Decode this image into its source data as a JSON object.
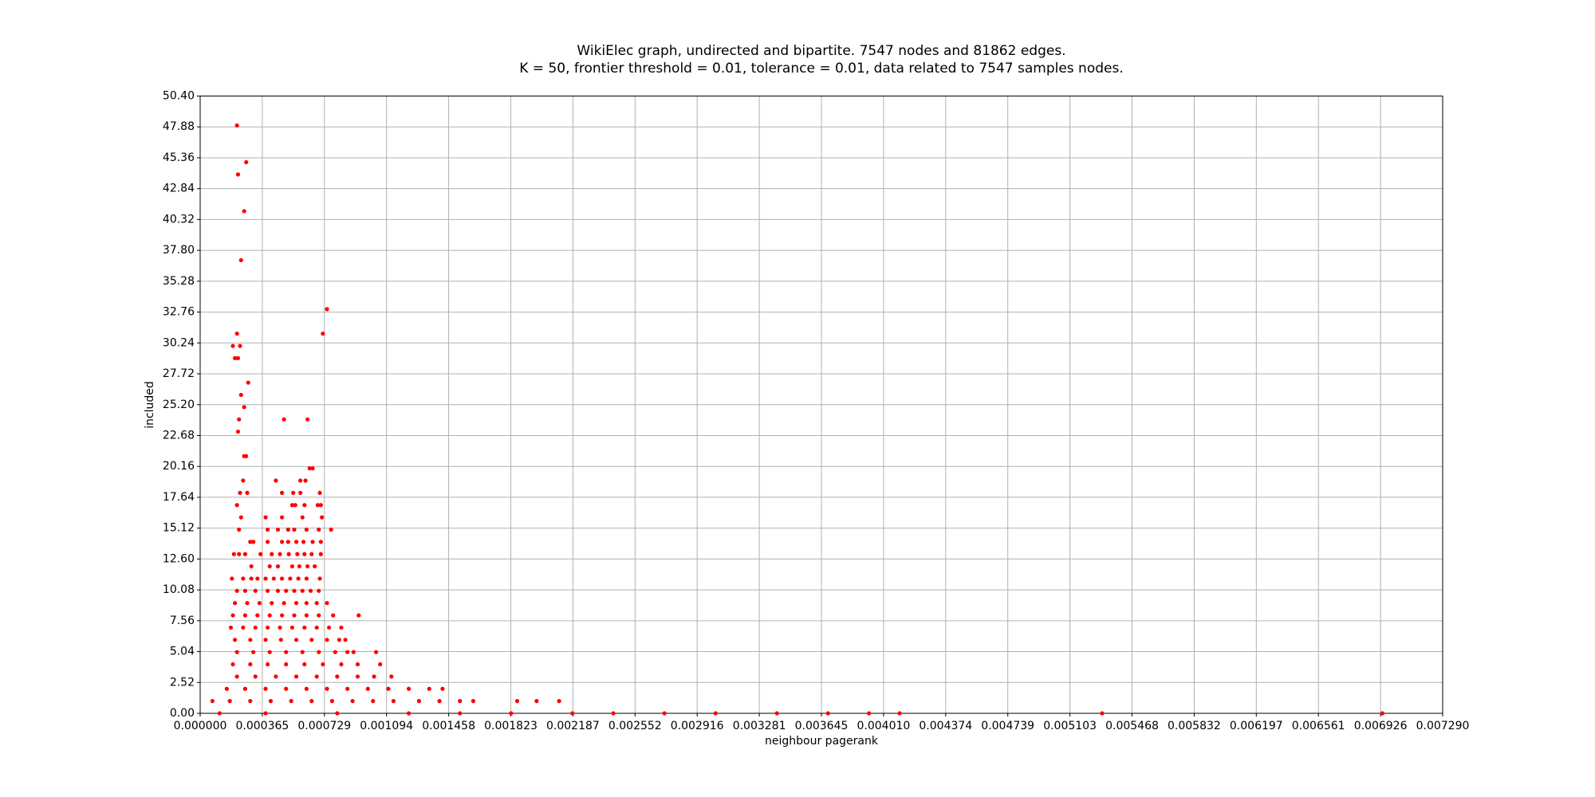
{
  "chart_data": {
    "type": "scatter",
    "title": "WikiElec graph, undirected and bipartite. 7547 nodes and 81862 edges.",
    "subtitle": "K = 50, frontier threshold = 0.01, tolerance = 0.01, data related to 7547 samples nodes.",
    "x_label": "neighbour pagerank",
    "y_label": "included",
    "color": "#ff0000",
    "grid": true,
    "x": [
      0.000216,
      0.00027,
      0.000222,
      0.000258,
      0.00024,
      0.000744,
      0.000216,
      0.00072,
      0.000192,
      0.000234,
      0.000204,
      0.000222,
      0.000282,
      0.00024,
      0.000258,
      0.000228,
      0.000492,
      0.00063,
      0.000222,
      0.000258,
      0.00027,
      0.000642,
      0.00066,
      0.000252,
      0.000444,
      0.000588,
      0.000618,
      0.000234,
      0.000276,
      0.00048,
      0.000546,
      0.000588,
      0.000702,
      0.000216,
      0.00054,
      0.000558,
      0.000612,
      0.00069,
      0.000708,
      0.00024,
      0.000384,
      0.00048,
      0.0006,
      0.000714,
      0.000228,
      0.000396,
      0.000456,
      0.000516,
      0.000552,
      0.000624,
      0.000696,
      0.000768,
      0.000294,
      0.000312,
      0.000396,
      0.00048,
      0.000516,
      0.000564,
      0.000606,
      0.00066,
      0.000708,
      0.000198,
      0.000228,
      0.000264,
      0.000354,
      0.00042,
      0.000468,
      0.00052,
      0.00057,
      0.000612,
      0.000654,
      0.000708,
      0.0003,
      0.000408,
      0.000456,
      0.00054,
      0.000582,
      0.00063,
      0.000672,
      0.000186,
      0.000252,
      0.0003,
      0.000336,
      0.000384,
      0.000432,
      0.00048,
      0.000528,
      0.000576,
      0.000624,
      0.000702,
      0.000216,
      0.000264,
      0.000324,
      0.000396,
      0.000456,
      0.000504,
      0.000552,
      0.0006,
      0.000648,
      0.000696,
      0.000204,
      0.000276,
      0.000348,
      0.00042,
      0.000492,
      0.000564,
      0.000624,
      0.000684,
      0.000744,
      0.000192,
      0.000264,
      0.000336,
      0.000408,
      0.00048,
      0.000552,
      0.000624,
      0.000696,
      0.00078,
      0.00093,
      0.00018,
      0.000252,
      0.000324,
      0.000396,
      0.000468,
      0.00054,
      0.000612,
      0.000684,
      0.000756,
      0.000828,
      0.000204,
      0.000294,
      0.000384,
      0.000474,
      0.000564,
      0.000654,
      0.000744,
      0.000816,
      0.000852,
      0.000216,
      0.000312,
      0.000408,
      0.000504,
      0.0006,
      0.000696,
      0.000792,
      0.000864,
      0.0009,
      0.001032,
      0.000192,
      0.000294,
      0.000396,
      0.000504,
      0.000612,
      0.00072,
      0.000828,
      0.000924,
      0.001056,
      0.000216,
      0.000324,
      0.000444,
      0.000564,
      0.000684,
      0.000804,
      0.000924,
      0.00102,
      0.001122,
      0.000156,
      0.000264,
      0.000384,
      0.000504,
      0.000624,
      0.000744,
      0.000864,
      0.000984,
      0.001104,
      0.001224,
      0.001344,
      0.001422,
      7.2e-05,
      0.000174,
      0.000294,
      0.000414,
      0.000534,
      0.000654,
      0.000774,
      0.000894,
      0.001014,
      0.001134,
      0.001284,
      0.001404,
      0.001524,
      0.001602,
      0.00186,
      0.001974,
      0.002106,
      0.000114,
      0.000384,
      0.000804,
      0.001224,
      0.001524,
      0.001824,
      0.002184,
      0.002424,
      0.002724,
      0.003024,
      0.003384,
      0.003684,
      0.003924,
      0.004104,
      0.005292,
      0.006936
    ],
    "values": [
      48,
      45,
      44,
      41,
      37,
      33,
      31,
      31,
      30,
      30,
      29,
      29,
      27,
      26,
      25,
      24,
      24,
      24,
      23,
      21,
      21,
      20,
      20,
      19,
      19,
      19,
      19,
      18,
      18,
      18,
      18,
      18,
      18,
      17,
      17,
      17,
      17,
      17,
      17,
      16,
      16,
      16,
      16,
      16,
      15,
      15,
      15,
      15,
      15,
      15,
      15,
      15,
      14,
      14,
      14,
      14,
      14,
      14,
      14,
      14,
      14,
      13,
      13,
      13,
      13,
      13,
      13,
      13,
      13,
      13,
      13,
      13,
      12,
      12,
      12,
      12,
      12,
      12,
      12,
      11,
      11,
      11,
      11,
      11,
      11,
      11,
      11,
      11,
      11,
      11,
      10,
      10,
      10,
      10,
      10,
      10,
      10,
      10,
      10,
      10,
      9,
      9,
      9,
      9,
      9,
      9,
      9,
      9,
      9,
      8,
      8,
      8,
      8,
      8,
      8,
      8,
      8,
      8,
      8,
      7,
      7,
      7,
      7,
      7,
      7,
      7,
      7,
      7,
      7,
      6,
      6,
      6,
      6,
      6,
      6,
      6,
      6,
      6,
      5,
      5,
      5,
      5,
      5,
      5,
      5,
      5,
      5,
      5,
      4,
      4,
      4,
      4,
      4,
      4,
      4,
      4,
      4,
      3,
      3,
      3,
      3,
      3,
      3,
      3,
      3,
      3,
      2,
      2,
      2,
      2,
      2,
      2,
      2,
      2,
      2,
      2,
      2,
      2,
      1,
      1,
      1,
      1,
      1,
      1,
      1,
      1,
      1,
      1,
      1,
      1,
      1,
      1,
      1,
      1,
      1,
      0,
      0,
      0,
      0,
      0,
      0,
      0,
      0,
      0,
      0,
      0,
      0,
      0,
      0,
      0,
      0
    ],
    "xlim": [
      0,
      0.00729
    ],
    "ylim": [
      0,
      50.4
    ],
    "xticks": [
      {
        "value": 0,
        "label": "0.000000"
      },
      {
        "value": 0.0003645,
        "label": "0.000365"
      },
      {
        "value": 0.000729,
        "label": "0.000729"
      },
      {
        "value": 0.0010935,
        "label": "0.001094"
      },
      {
        "value": 0.001458,
        "label": "0.001458"
      },
      {
        "value": 0.0018225,
        "label": "0.001823"
      },
      {
        "value": 0.002187,
        "label": "0.002187"
      },
      {
        "value": 0.0025515,
        "label": "0.002552"
      },
      {
        "value": 0.002916,
        "label": "0.002916"
      },
      {
        "value": 0.0032805,
        "label": "0.003281"
      },
      {
        "value": 0.003645,
        "label": "0.003645"
      },
      {
        "value": 0.0040095,
        "label": "0.004010"
      },
      {
        "value": 0.004374,
        "label": "0.004374"
      },
      {
        "value": 0.0047385,
        "label": "0.004739"
      },
      {
        "value": 0.005103,
        "label": "0.005103"
      },
      {
        "value": 0.0054675,
        "label": "0.005468"
      },
      {
        "value": 0.005832,
        "label": "0.005832"
      },
      {
        "value": 0.0061965,
        "label": "0.006197"
      },
      {
        "value": 0.006561,
        "label": "0.006561"
      },
      {
        "value": 0.0069255,
        "label": "0.006926"
      },
      {
        "value": 0.00729,
        "label": "0.007290"
      }
    ],
    "yticks": [
      {
        "value": 0,
        "label": "0.00"
      },
      2.52,
      5.04,
      7.56,
      10.08,
      {
        "value": 12.6,
        "label": "12.60"
      },
      15.12,
      17.64,
      20.16,
      22.68,
      {
        "value": 25.2,
        "label": "25.20"
      },
      27.72,
      30.24,
      32.76,
      35.28,
      {
        "value": 37.8,
        "label": "37.80"
      },
      40.32,
      42.84,
      45.36,
      47.88,
      {
        "value": 50.4,
        "label": "50.40"
      }
    ]
  }
}
